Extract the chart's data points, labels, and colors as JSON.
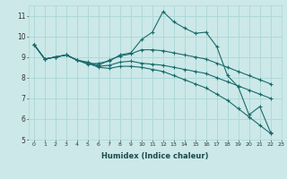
{
  "xlabel": "Humidex (Indice chaleur)",
  "background_color": "#cce8e8",
  "line_color": "#1a6b6b",
  "grid_color": "#b0d8d8",
  "xlim": [
    -0.5,
    23
  ],
  "ylim": [
    5,
    11.5
  ],
  "xticks": [
    0,
    1,
    2,
    3,
    4,
    5,
    6,
    7,
    8,
    9,
    10,
    11,
    12,
    13,
    14,
    15,
    16,
    17,
    18,
    19,
    20,
    21,
    22,
    23
  ],
  "yticks": [
    5,
    6,
    7,
    8,
    9,
    10,
    11
  ],
  "series": [
    {
      "x": [
        0,
        1,
        2,
        3,
        4,
        5,
        6,
        7,
        8,
        9,
        10,
        11,
        12,
        13,
        14,
        15,
        16,
        17,
        18,
        19,
        20,
        21,
        22
      ],
      "y": [
        9.6,
        8.9,
        9.0,
        9.1,
        8.85,
        8.65,
        8.7,
        8.8,
        9.1,
        9.2,
        9.85,
        10.2,
        11.2,
        10.7,
        10.4,
        10.15,
        10.2,
        9.5,
        8.1,
        7.55,
        6.2,
        6.6,
        5.35
      ]
    },
    {
      "x": [
        0,
        1,
        2,
        3,
        4,
        5,
        6,
        7,
        8,
        9,
        10,
        11,
        12,
        13,
        14,
        15,
        16,
        17,
        18,
        19,
        20,
        21,
        22
      ],
      "y": [
        9.6,
        8.9,
        9.0,
        9.1,
        8.85,
        8.75,
        8.6,
        8.85,
        9.05,
        9.15,
        9.35,
        9.35,
        9.3,
        9.2,
        9.1,
        9.0,
        8.9,
        8.7,
        8.5,
        8.3,
        8.1,
        7.9,
        7.7
      ]
    },
    {
      "x": [
        0,
        1,
        2,
        3,
        4,
        5,
        6,
        7,
        8,
        9,
        10,
        11,
        12,
        13,
        14,
        15,
        16,
        17,
        18,
        19,
        20,
        21,
        22
      ],
      "y": [
        9.6,
        8.9,
        9.0,
        9.1,
        8.85,
        8.7,
        8.55,
        8.6,
        8.75,
        8.8,
        8.7,
        8.65,
        8.6,
        8.5,
        8.4,
        8.3,
        8.2,
        8.0,
        7.8,
        7.6,
        7.4,
        7.2,
        7.0
      ]
    },
    {
      "x": [
        0,
        1,
        2,
        3,
        4,
        5,
        6,
        7,
        8,
        9,
        10,
        11,
        12,
        13,
        14,
        15,
        16,
        17,
        18,
        19,
        20,
        21,
        22
      ],
      "y": [
        9.6,
        8.9,
        9.0,
        9.1,
        8.85,
        8.7,
        8.5,
        8.45,
        8.55,
        8.55,
        8.5,
        8.4,
        8.3,
        8.1,
        7.9,
        7.7,
        7.5,
        7.2,
        6.9,
        6.5,
        6.1,
        5.7,
        5.3
      ]
    }
  ]
}
